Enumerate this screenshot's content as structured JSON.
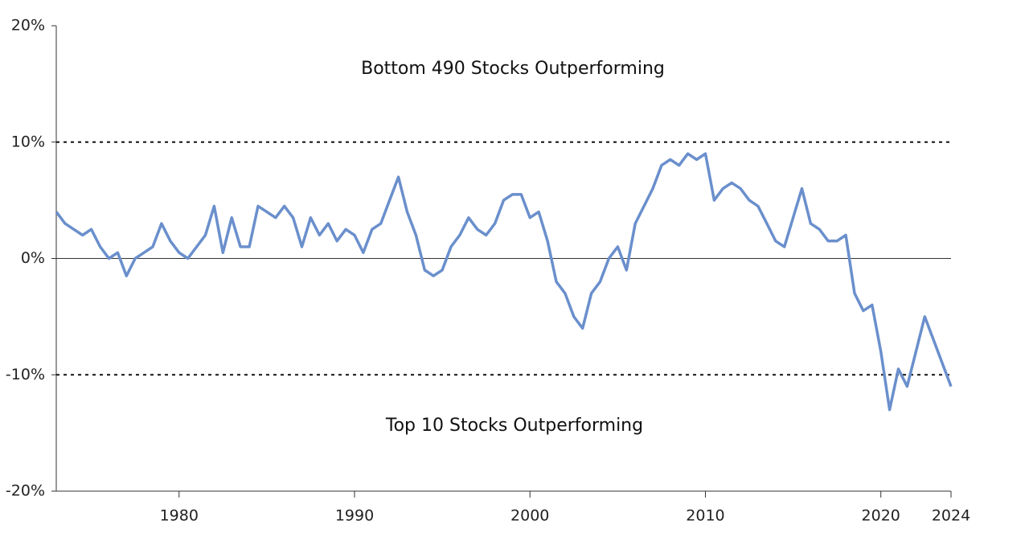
{
  "chart_data": {
    "type": "line",
    "annotations": [
      "Bottom 490 Stocks Outperforming",
      "Top 10 Stocks Outperforming"
    ],
    "x": [
      1973,
      1973.5,
      1974,
      1974.5,
      1975,
      1975.5,
      1976,
      1976.5,
      1977,
      1977.5,
      1978,
      1978.5,
      1979,
      1979.5,
      1980,
      1980.5,
      1981,
      1981.5,
      1982,
      1982.5,
      1983,
      1983.5,
      1984,
      1984.5,
      1985,
      1985.5,
      1986,
      1986.5,
      1987,
      1987.5,
      1988,
      1988.5,
      1989,
      1989.5,
      1990,
      1990.5,
      1991,
      1991.5,
      1992,
      1992.5,
      1993,
      1993.5,
      1994,
      1994.5,
      1995,
      1995.5,
      1996,
      1996.5,
      1997,
      1997.5,
      1998,
      1998.5,
      1999,
      1999.5,
      2000,
      2000.5,
      2001,
      2001.5,
      2002,
      2002.5,
      2003,
      2003.5,
      2004,
      2004.5,
      2005,
      2005.5,
      2006,
      2006.5,
      2007,
      2007.5,
      2008,
      2008.5,
      2009,
      2009.5,
      2010,
      2010.5,
      2011,
      2011.5,
      2012,
      2012.5,
      2013,
      2013.5,
      2014,
      2014.5,
      2015,
      2015.5,
      2016,
      2016.5,
      2017,
      2017.5,
      2018,
      2018.5,
      2019,
      2019.5,
      2020,
      2020.5,
      2021,
      2021.5,
      2022,
      2022.5,
      2023,
      2023.5,
      2024
    ],
    "series": [
      {
        "color": "#6a8fcc",
        "values": [
          4,
          3,
          2.5,
          2,
          2.5,
          1,
          0,
          0.5,
          -1.5,
          0,
          0.5,
          1,
          3,
          1.5,
          0.5,
          0,
          1,
          2,
          4.5,
          0.5,
          3.5,
          1,
          1,
          4.5,
          4,
          3.5,
          4.5,
          3.5,
          1,
          3.5,
          2,
          3,
          1.5,
          2.5,
          2,
          0.5,
          2.5,
          3,
          5,
          7,
          4,
          2,
          -1,
          -1.5,
          -1,
          1,
          2,
          3.5,
          2.5,
          2,
          3,
          5,
          5.5,
          5.5,
          3.5,
          4,
          1.5,
          -2,
          -3,
          -5,
          -6,
          -3,
          -2,
          0,
          1,
          -1,
          3,
          4.5,
          6,
          8,
          8.5,
          8,
          9,
          8.5,
          9,
          5,
          6,
          6.5,
          6,
          5,
          4.5,
          3,
          1.5,
          1,
          3.5,
          6,
          3,
          2.5,
          1.5,
          1.5,
          2,
          -3,
          -4.5,
          -4,
          -8,
          -13,
          -9.5,
          -11,
          -8,
          -5,
          -7,
          -9,
          -11
        ]
      }
    ],
    "xlim": [
      1973,
      2024
    ],
    "xticks": [
      1980,
      1990,
      2000,
      2010,
      2020,
      2024
    ],
    "ylim": [
      -20,
      20
    ],
    "yticks": [
      {
        "value": -20,
        "label": "-20%"
      },
      {
        "value": -10,
        "label": "-10%"
      },
      {
        "value": 0,
        "label": "0%"
      },
      {
        "value": 10,
        "label": "10%"
      },
      {
        "value": 20,
        "label": "20%"
      }
    ],
    "reference_lines": [
      10,
      -10
    ]
  }
}
